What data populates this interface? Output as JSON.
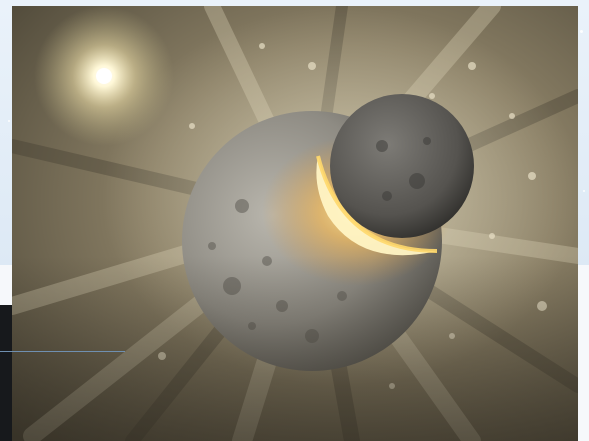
{
  "image": {
    "subject": "planetary-collision-artwork",
    "colors": {
      "sky_dust": "#8b8066",
      "dust_dark": "#3f3a2e",
      "dust_light": "#d9d0b4",
      "planet_large": "#9a978f",
      "planet_small": "#5b5a57",
      "impact_glow": "#ffd86b",
      "sun": "#fff8d8",
      "background_panel": "#e6eef7",
      "guide_line": "#6f8fb0",
      "side_bar": "#17191c"
    }
  }
}
